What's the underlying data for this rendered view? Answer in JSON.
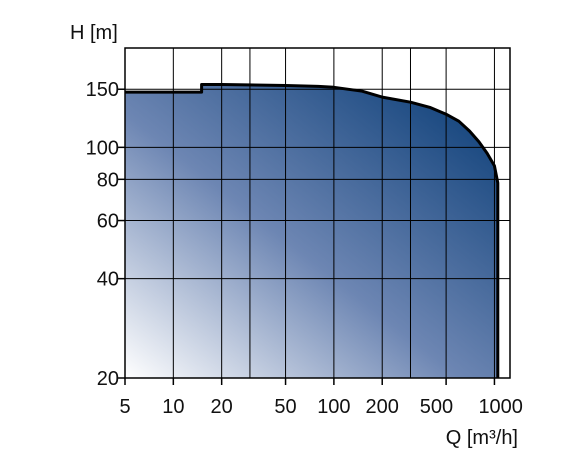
{
  "chart_data": {
    "type": "area",
    "xscale": "log",
    "yscale": "log",
    "xlim": [
      5,
      1250
    ],
    "ylim": [
      20,
      200
    ],
    "xlabel": "Q [m³/h]",
    "ylabel": "H [m]",
    "grid": true,
    "x_ticks": [
      5,
      10,
      20,
      50,
      100,
      200,
      500,
      1000
    ],
    "x_tick_labels": [
      "5",
      "10",
      "20",
      "50",
      "100",
      "200",
      "500",
      "1000"
    ],
    "x_minor_ticks": [
      30,
      300
    ],
    "y_ticks": [
      20,
      40,
      60,
      80,
      100,
      150
    ],
    "y_tick_labels": [
      "20",
      "40",
      "60",
      "80",
      "100",
      "150"
    ],
    "y_minor_ticks": [],
    "fill_gradient": [
      "#ffffff",
      "#6d86b3",
      "#063a74"
    ],
    "edge_color": "#000000",
    "series": [
      {
        "x": [
          5,
          15,
          15,
          20,
          50,
          80,
          100,
          150,
          200,
          300,
          400,
          500,
          600,
          700,
          800,
          900,
          1000,
          1050,
          1050
        ],
        "y": [
          147,
          147,
          155,
          155,
          154,
          153,
          152,
          148,
          142,
          137,
          132,
          126,
          120,
          112,
          104,
          96,
          88,
          78,
          20
        ]
      }
    ]
  }
}
